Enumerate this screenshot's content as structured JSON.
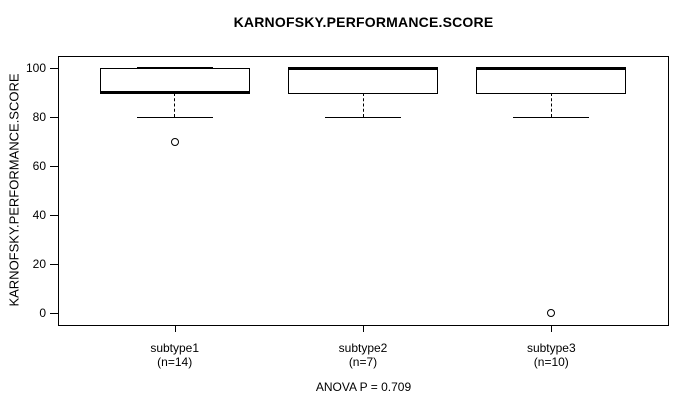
{
  "header": {
    "title": "KARNOFSKY.PERFORMANCE.SCORE"
  },
  "footer": {
    "annotation": "ANOVA P = 0.709"
  },
  "chart_data": {
    "type": "boxplot",
    "title": "KARNOFSKY.PERFORMANCE.SCORE",
    "ylabel": "KARNOFSKY.PERFORMANCE.SCORE",
    "xlabel": "",
    "annotation": "ANOVA P = 0.709",
    "ylim": [
      0,
      100
    ],
    "yticks": [
      0,
      20,
      40,
      60,
      80,
      100
    ],
    "grid": false,
    "legend": "none",
    "categories": [
      "subtype1",
      "subtype2",
      "subtype3"
    ],
    "category_counts": [
      "(n=14)",
      "(n=7)",
      "(n=10)"
    ],
    "series": [
      {
        "name": "subtype1",
        "n": 14,
        "whisker_low": 80,
        "q1": 90,
        "median": 90,
        "q3": 100,
        "whisker_high": 100,
        "outliers": [
          70
        ]
      },
      {
        "name": "subtype2",
        "n": 7,
        "whisker_low": 80,
        "q1": 90,
        "median": 100,
        "q3": 100,
        "whisker_high": 100,
        "outliers": []
      },
      {
        "name": "subtype3",
        "n": 10,
        "whisker_low": 80,
        "q1": 90,
        "median": 100,
        "q3": 100,
        "whisker_high": 100,
        "outliers": [
          0
        ]
      }
    ],
    "colors": {
      "box_fill": "#ffffff",
      "line": "#000000",
      "text": "#000000"
    }
  }
}
